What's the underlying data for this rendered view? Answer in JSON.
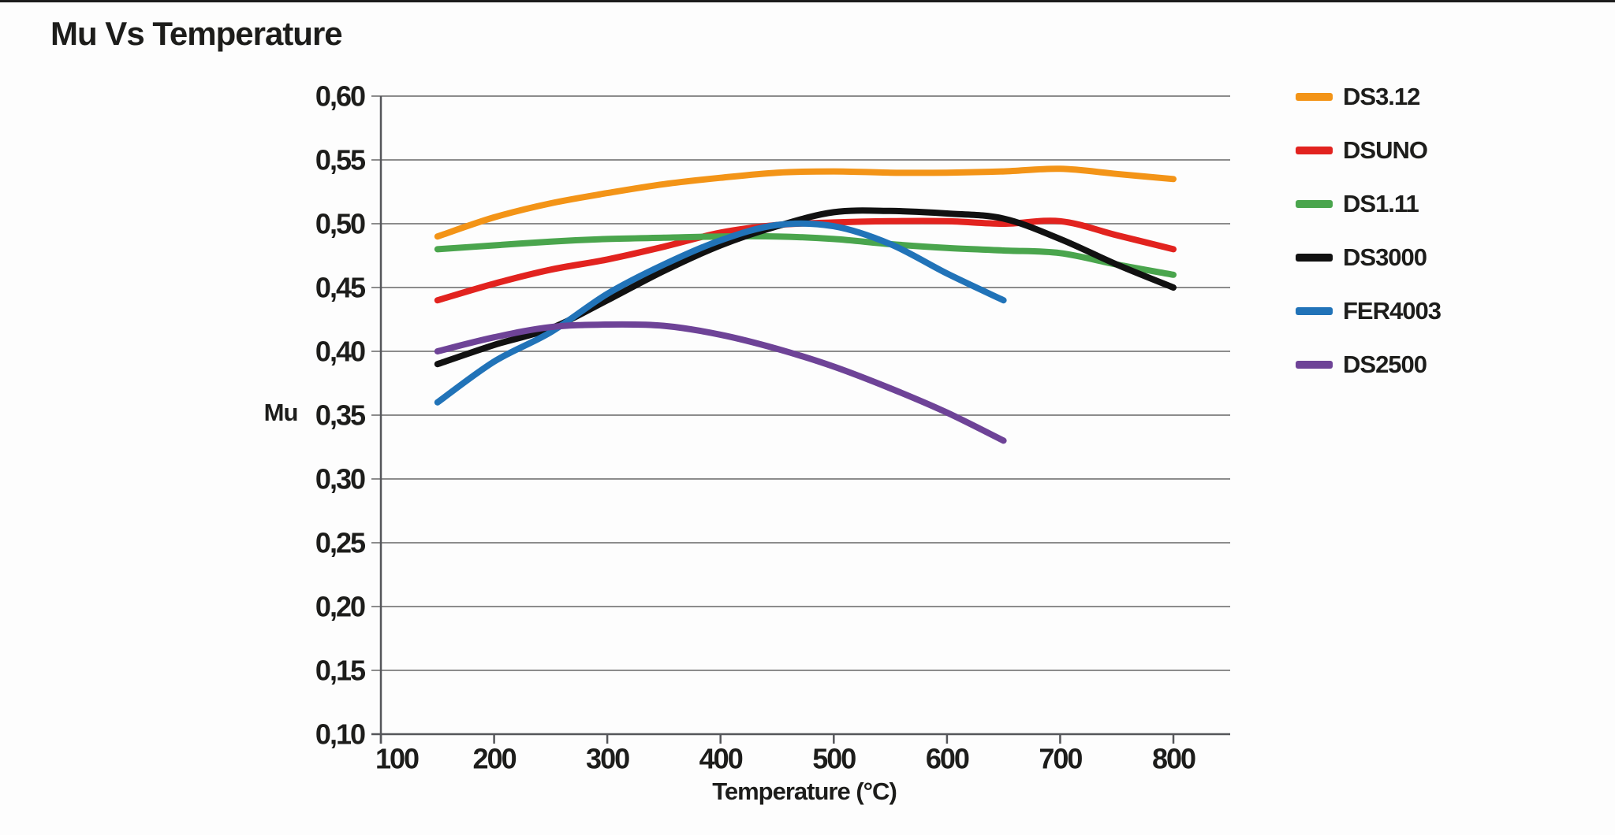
{
  "page": {
    "title": "Mu Vs Temperature"
  },
  "chart_data": {
    "type": "line",
    "title": "Mu Vs Temperature",
    "xlabel": "Temperature (°C)",
    "ylabel": "Mu",
    "xlim": [
      100,
      850
    ],
    "ylim": [
      0.1,
      0.6
    ],
    "grid": "horizontal",
    "legend_position": "right",
    "x_ticks": [
      100,
      200,
      300,
      400,
      500,
      600,
      700,
      800
    ],
    "x_tick_labels": [
      "100",
      "200",
      "300",
      "400",
      "500",
      "600",
      "700",
      "800"
    ],
    "y_ticks": [
      0.6,
      0.55,
      0.5,
      0.45,
      0.4,
      0.35,
      0.3,
      0.25,
      0.2,
      0.15,
      0.1
    ],
    "y_tick_labels": [
      "0,60",
      "0,55",
      "0,50",
      "0,45",
      "0,40",
      "0,35",
      "0,30",
      "0,25",
      "0,20",
      "0,15",
      "0,10"
    ],
    "series": [
      {
        "name": "DS3.12",
        "color": "#F39417",
        "x": [
          150,
          200,
          250,
          300,
          350,
          400,
          450,
          500,
          550,
          600,
          650,
          700,
          750,
          800
        ],
        "values": [
          0.49,
          0.505,
          0.516,
          0.524,
          0.531,
          0.536,
          0.54,
          0.541,
          0.54,
          0.54,
          0.541,
          0.543,
          0.539,
          0.535
        ]
      },
      {
        "name": "DSUNO",
        "color": "#E2231F",
        "x": [
          150,
          200,
          250,
          300,
          350,
          400,
          450,
          500,
          550,
          600,
          650,
          700,
          750,
          800
        ],
        "values": [
          0.44,
          0.453,
          0.464,
          0.472,
          0.482,
          0.493,
          0.499,
          0.501,
          0.502,
          0.502,
          0.5,
          0.502,
          0.491,
          0.48
        ]
      },
      {
        "name": "DS1.11",
        "color": "#4AA54D",
        "x": [
          150,
          200,
          250,
          300,
          350,
          400,
          450,
          500,
          550,
          600,
          650,
          700,
          750,
          800
        ],
        "values": [
          0.48,
          0.483,
          0.486,
          0.488,
          0.489,
          0.49,
          0.49,
          0.488,
          0.484,
          0.481,
          0.479,
          0.477,
          0.468,
          0.46
        ]
      },
      {
        "name": "DS3000",
        "color": "#111111",
        "x": [
          150,
          200,
          250,
          300,
          350,
          400,
          450,
          500,
          550,
          600,
          650,
          700,
          750,
          800
        ],
        "values": [
          0.39,
          0.405,
          0.418,
          0.44,
          0.463,
          0.483,
          0.498,
          0.509,
          0.51,
          0.508,
          0.504,
          0.488,
          0.468,
          0.45
        ]
      },
      {
        "name": "FER4003",
        "color": "#2173B8",
        "x": [
          150,
          200,
          250,
          300,
          350,
          400,
          450,
          500,
          550,
          600,
          650
        ],
        "values": [
          0.36,
          0.392,
          0.415,
          0.445,
          0.468,
          0.487,
          0.499,
          0.498,
          0.484,
          0.461,
          0.44
        ]
      },
      {
        "name": "DS2500",
        "color": "#6E4397",
        "x": [
          150,
          200,
          250,
          300,
          350,
          400,
          450,
          500,
          550,
          600,
          650
        ],
        "values": [
          0.4,
          0.411,
          0.419,
          0.421,
          0.42,
          0.413,
          0.402,
          0.388,
          0.371,
          0.352,
          0.33
        ]
      }
    ]
  }
}
